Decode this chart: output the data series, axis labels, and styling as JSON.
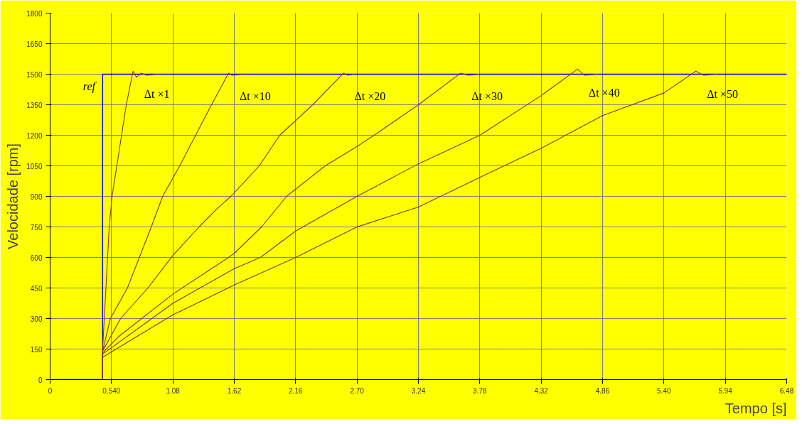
{
  "chart_data": {
    "type": "line",
    "xlabel": "Tempo [s]",
    "ylabel": "Velocidade [rpm]",
    "xlim": [
      0,
      6.48
    ],
    "ylim": [
      0,
      1800
    ],
    "xticks": [
      0,
      {
        "value": 0.54,
        "label": "0.540"
      },
      1.08,
      1.62,
      2.16,
      {
        "value": 2.7,
        "label": "2.70"
      },
      3.24,
      3.78,
      4.32,
      4.86,
      {
        "value": 5.4,
        "label": "5.40"
      },
      5.94,
      6.48
    ],
    "yticks": [
      0,
      150,
      300,
      450,
      600,
      750,
      900,
      1050,
      1200,
      1350,
      1500,
      1650,
      1800
    ],
    "grid": true,
    "marker": "none",
    "line_style": "solid",
    "series": [
      {
        "name": "ref",
        "color": "#0000ff",
        "x": [
          0,
          0.462,
          0.462,
          6.48
        ],
        "values": [
          0,
          0,
          1500,
          1500
        ]
      },
      {
        "name": "Δt ×1",
        "color": "#7a3b2e",
        "x": [
          0,
          0.462,
          0.462,
          0.52,
          0.545,
          0.67,
          0.73,
          0.76,
          0.8,
          0.85,
          0.95
        ],
        "values": [
          0,
          0,
          150,
          750,
          900,
          1350,
          1515,
          1485,
          1505,
          1495,
          1500
        ]
      },
      {
        "name": "Δt ×10",
        "color": "#7a3b2e",
        "x": [
          0.462,
          0.462,
          0.53,
          0.68,
          0.89,
          0.99,
          1.14,
          1.28,
          1.42,
          1.57,
          1.6,
          1.7
        ],
        "values": [
          0,
          140,
          300,
          450,
          750,
          900,
          1050,
          1200,
          1350,
          1505,
          1495,
          1500
        ]
      },
      {
        "name": "Δt ×20",
        "color": "#7a3b2e",
        "x": [
          0.462,
          0.462,
          0.62,
          0.86,
          1.08,
          1.31,
          1.47,
          1.59,
          1.84,
          2.02,
          2.31,
          2.58,
          2.62,
          2.67
        ],
        "values": [
          0,
          140,
          300,
          450,
          610,
          750,
          840,
          900,
          1050,
          1200,
          1350,
          1505,
          1495,
          1500
        ]
      },
      {
        "name": "Δt ×30",
        "color": "#7a3b2e",
        "x": [
          0.462,
          0.462,
          0.6,
          1.08,
          1.57,
          1.62,
          1.86,
          2.08,
          2.42,
          2.7,
          2.85,
          3.24,
          3.61,
          3.68,
          3.78
        ],
        "values": [
          0,
          130,
          210,
          420,
          600,
          620,
          750,
          900,
          1050,
          1145,
          1200,
          1350,
          1505,
          1495,
          1500
        ]
      },
      {
        "name": "Δt ×40",
        "color": "#7a3b2e",
        "x": [
          0.462,
          0.462,
          1.08,
          1.62,
          1.85,
          2.16,
          2.7,
          3.24,
          3.78,
          4.32,
          4.64,
          4.7,
          4.82
        ],
        "values": [
          0,
          125,
          375,
          545,
          600,
          730,
          900,
          1060,
          1200,
          1395,
          1525,
          1495,
          1500
        ]
      },
      {
        "name": "Δt ×50",
        "color": "#7a3b2e",
        "x": [
          0.462,
          0.462,
          1.08,
          1.62,
          2.16,
          2.7,
          3.24,
          3.78,
          4.32,
          4.86,
          5.4,
          5.68,
          5.75,
          5.86
        ],
        "values": [
          0,
          110,
          318,
          465,
          600,
          750,
          848,
          993,
          1136,
          1297,
          1408,
          1515,
          1495,
          1500
        ]
      }
    ]
  }
}
